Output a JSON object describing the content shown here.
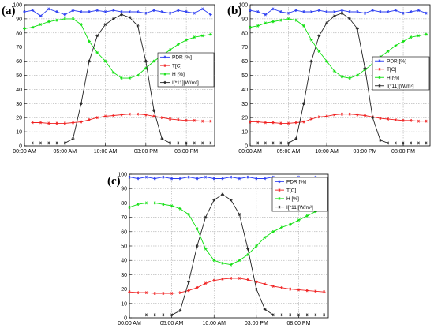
{
  "chart_data": [
    {
      "type": "line",
      "panel_label": "(a)",
      "x_tick_labels": [
        "00:00 AM",
        "05:00 AM",
        "10:00 AM",
        "03:00 PM",
        "08:00 PM"
      ],
      "x_tick_hours": [
        0,
        5,
        10,
        15,
        20
      ],
      "ylim": [
        0,
        100
      ],
      "y_ticks": [
        0,
        10,
        20,
        30,
        40,
        50,
        60,
        70,
        80,
        90,
        100
      ],
      "grid": true,
      "legend_position": "right",
      "series": [
        {
          "name": "PDR [%]",
          "color": "#2b3df2",
          "marker": "star",
          "x": [
            0,
            1,
            2,
            3,
            4,
            5,
            6,
            7,
            8,
            9,
            10,
            11,
            12,
            13,
            14,
            15,
            16,
            17,
            18,
            19,
            20,
            21,
            22,
            23
          ],
          "y": [
            95,
            96,
            92,
            97,
            95,
            93,
            96,
            95,
            95,
            96,
            95,
            96,
            95,
            95,
            95,
            94,
            96,
            95,
            94,
            96,
            95,
            94,
            97,
            93
          ]
        },
        {
          "name": "T[C]",
          "color": "#f02020",
          "marker": "star",
          "x": [
            1,
            2,
            3,
            4,
            5,
            6,
            7,
            8,
            9,
            10,
            11,
            12,
            13,
            14,
            15,
            16,
            17,
            18,
            19,
            20,
            21,
            22,
            23
          ],
          "y": [
            16.5,
            16.5,
            16,
            16,
            16,
            16.5,
            17,
            18.5,
            20,
            21,
            21.5,
            22,
            22.5,
            22.5,
            22,
            21,
            20,
            19,
            18.5,
            18,
            18,
            17.5,
            17.5
          ]
        },
        {
          "name": "H [%]",
          "color": "#10e010",
          "marker": "star",
          "x": [
            0,
            1,
            2,
            3,
            4,
            5,
            6,
            7,
            8,
            9,
            10,
            11,
            12,
            13,
            14,
            15,
            16,
            17,
            18,
            19,
            20,
            21,
            22,
            23
          ],
          "y": [
            83,
            84,
            86,
            88,
            89,
            90,
            90,
            86,
            74,
            66,
            60,
            52,
            48,
            48,
            50,
            55,
            60,
            64,
            68,
            72,
            75,
            77,
            78,
            79
          ]
        },
        {
          "name": "I[*11][W/m²]",
          "color": "#222222",
          "marker": "star",
          "x": [
            1,
            2,
            3,
            4,
            5,
            6,
            7,
            8,
            9,
            10,
            11,
            12,
            13,
            14,
            15,
            16,
            17,
            18,
            19,
            20,
            21,
            22,
            23
          ],
          "y": [
            2,
            2,
            2,
            2,
            2,
            5,
            30,
            60,
            78,
            86,
            90,
            93,
            91,
            85,
            60,
            25,
            5,
            2,
            2,
            2,
            2,
            2,
            2
          ]
        }
      ]
    },
    {
      "type": "line",
      "panel_label": "(b)",
      "x_tick_labels": [
        "00:00 AM",
        "05:00 AM",
        "10:00 AM",
        "03:00 PM",
        "08:00 PM"
      ],
      "x_tick_hours": [
        0,
        5,
        10,
        15,
        20
      ],
      "ylim": [
        0,
        100
      ],
      "y_ticks": [
        0,
        10,
        20,
        30,
        40,
        50,
        60,
        70,
        80,
        90,
        100
      ],
      "grid": true,
      "legend_position": "right",
      "series": [
        {
          "name": "PDR [%]",
          "color": "#2b3df2",
          "marker": "star",
          "x": [
            0,
            1,
            2,
            3,
            4,
            5,
            6,
            7,
            8,
            9,
            10,
            11,
            12,
            13,
            14,
            15,
            16,
            17,
            18,
            19,
            20,
            21,
            22,
            23
          ],
          "y": [
            96,
            95,
            93,
            97,
            95,
            94,
            96,
            95,
            95,
            96,
            95,
            95,
            96,
            95,
            95,
            94,
            96,
            95,
            95,
            96,
            94,
            95,
            96,
            94
          ]
        },
        {
          "name": "T[C]",
          "color": "#f02020",
          "marker": "star",
          "x": [
            0,
            1,
            2,
            3,
            4,
            5,
            6,
            7,
            8,
            9,
            10,
            11,
            12,
            13,
            14,
            15,
            16,
            17,
            18,
            19,
            20,
            21,
            22,
            23
          ],
          "y": [
            17,
            17,
            16.5,
            16.5,
            16,
            16,
            16.5,
            17,
            19,
            20.5,
            21,
            22,
            22.5,
            22.5,
            22,
            21.5,
            20.5,
            19.5,
            19,
            18.5,
            18,
            18,
            17.5,
            17.5
          ]
        },
        {
          "name": "H [%]",
          "color": "#10e010",
          "marker": "star",
          "x": [
            0,
            1,
            2,
            3,
            4,
            5,
            6,
            7,
            8,
            9,
            10,
            11,
            12,
            13,
            14,
            15,
            16,
            17,
            18,
            19,
            20,
            21,
            22,
            23
          ],
          "y": [
            84,
            85,
            87,
            88,
            89,
            90,
            89,
            85,
            75,
            67,
            60,
            53,
            49,
            48,
            50,
            54,
            58,
            63,
            67,
            71,
            74,
            77,
            78,
            79
          ]
        },
        {
          "name": "I(*11)[W/m²]",
          "color": "#222222",
          "marker": "star",
          "x": [
            1,
            2,
            3,
            4,
            5,
            6,
            7,
            8,
            9,
            10,
            11,
            12,
            13,
            14,
            15,
            16,
            17,
            18,
            19,
            20,
            21,
            22,
            23
          ],
          "y": [
            2,
            2,
            2,
            2,
            2,
            5,
            30,
            60,
            78,
            87,
            92,
            94,
            90,
            83,
            55,
            20,
            4,
            2,
            2,
            2,
            2,
            2,
            2
          ]
        }
      ]
    },
    {
      "type": "line",
      "panel_label": "(c)",
      "x_tick_labels": [
        "00:00 AM",
        "05:00 AM",
        "10:00 AM",
        "03:00 PM",
        "08:00 PM"
      ],
      "x_tick_hours": [
        0,
        5,
        10,
        15,
        20
      ],
      "ylim": [
        0,
        100
      ],
      "y_ticks": [
        0,
        10,
        20,
        30,
        40,
        50,
        60,
        70,
        80,
        90,
        100
      ],
      "grid": true,
      "legend_position": "top-right",
      "series": [
        {
          "name": "PDR [%]",
          "color": "#2b3df2",
          "marker": "star",
          "x": [
            0,
            1,
            2,
            3,
            4,
            5,
            6,
            7,
            8,
            9,
            10,
            11,
            12,
            13,
            14,
            15,
            16,
            17,
            18,
            19,
            20,
            21,
            22,
            23
          ],
          "y": [
            98,
            97,
            98,
            97,
            98,
            97,
            97,
            98,
            97,
            98,
            97,
            97,
            98,
            97,
            98,
            97,
            97,
            98,
            97,
            97,
            98,
            97,
            98,
            97
          ]
        },
        {
          "name": "T[C]",
          "color": "#f02020",
          "marker": "star",
          "x": [
            0,
            1,
            2,
            3,
            4,
            5,
            6,
            7,
            8,
            9,
            10,
            11,
            12,
            13,
            14,
            15,
            16,
            17,
            18,
            19,
            20,
            21,
            22,
            23
          ],
          "y": [
            18,
            17.5,
            17.5,
            17,
            17,
            17,
            17.5,
            19,
            21,
            24,
            26,
            27,
            27.5,
            27.5,
            26.5,
            25,
            23.5,
            22,
            21,
            20,
            19.5,
            19,
            18.5,
            18
          ]
        },
        {
          "name": "H [%]",
          "color": "#10e010",
          "marker": "star",
          "x": [
            0,
            1,
            2,
            3,
            4,
            5,
            6,
            7,
            8,
            9,
            10,
            11,
            12,
            13,
            14,
            15,
            16,
            17,
            18,
            19,
            20,
            21,
            22,
            23
          ],
          "y": [
            77,
            79,
            80,
            80,
            79,
            78,
            76,
            72,
            62,
            48,
            40,
            38,
            37,
            40,
            44,
            50,
            56,
            60,
            63,
            65,
            68,
            71,
            74,
            77
          ]
        },
        {
          "name": "I[*11][W/m²]",
          "color": "#222222",
          "marker": "star",
          "x": [
            2,
            3,
            4,
            5,
            6,
            7,
            8,
            9,
            10,
            11,
            12,
            13,
            14,
            15,
            16,
            17,
            18,
            19,
            20,
            21,
            22,
            23
          ],
          "y": [
            2,
            2,
            2,
            2,
            5,
            25,
            50,
            70,
            82,
            86,
            82,
            72,
            48,
            20,
            6,
            2,
            2,
            2,
            2,
            2,
            2,
            2
          ]
        }
      ]
    }
  ]
}
